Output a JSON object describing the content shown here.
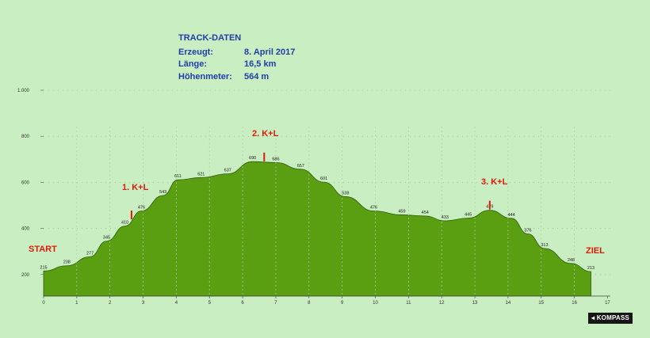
{
  "track_info": {
    "title": "TRACK-DATEN",
    "rows": [
      {
        "label": "Erzeugt:",
        "value": "8. April 2017"
      },
      {
        "label": "Länge:",
        "value": "16,5 km"
      },
      {
        "label": "Höhenmeter:",
        "value": "564 m"
      }
    ]
  },
  "markers": {
    "start": "START",
    "ziel": "ZIEL",
    "stops": [
      {
        "label": "1. K+L",
        "x": 2.65
      },
      {
        "label": "2. K+L",
        "x": 6.65
      },
      {
        "label": "3. K+L",
        "x": 13.45
      }
    ]
  },
  "brand": "KOMPASS",
  "colors": {
    "background": "#c9eec1",
    "fill": "#5a9e12",
    "labels": "#e01a0a",
    "info": "#1f3fa8"
  },
  "chart_data": {
    "type": "area",
    "xlabel": "",
    "ylabel": "",
    "xlim": [
      0,
      17
    ],
    "ylim": [
      0,
      1000
    ],
    "x_ticks": [
      "0",
      "1",
      "2",
      "3",
      "4",
      "5",
      "6",
      "7",
      "8",
      "9",
      "10",
      "11",
      "12",
      "13",
      "14",
      "15",
      "16",
      "17"
    ],
    "y_ticks": [
      {
        "value": 200,
        "label": "200"
      },
      {
        "value": 400,
        "label": "400"
      },
      {
        "value": 600,
        "label": "600"
      },
      {
        "value": 800,
        "label": "800"
      },
      {
        "value": 1000,
        "label": "1.000"
      }
    ],
    "grid": "vertical dashed lines at each km, dotted horizontal lines",
    "points": [
      {
        "x": 0.0,
        "y": 215
      },
      {
        "x": 0.7,
        "y": 238
      },
      {
        "x": 1.4,
        "y": 277
      },
      {
        "x": 1.9,
        "y": 345
      },
      {
        "x": 2.45,
        "y": 410
      },
      {
        "x": 2.95,
        "y": 476
      },
      {
        "x": 3.6,
        "y": 543
      },
      {
        "x": 4.05,
        "y": 611
      },
      {
        "x": 4.75,
        "y": 621
      },
      {
        "x": 5.55,
        "y": 637
      },
      {
        "x": 6.3,
        "y": 690
      },
      {
        "x": 7.0,
        "y": 686
      },
      {
        "x": 7.75,
        "y": 657
      },
      {
        "x": 8.45,
        "y": 601
      },
      {
        "x": 9.1,
        "y": 538
      },
      {
        "x": 9.95,
        "y": 476
      },
      {
        "x": 10.8,
        "y": 459
      },
      {
        "x": 11.5,
        "y": 454
      },
      {
        "x": 12.1,
        "y": 433
      },
      {
        "x": 12.8,
        "y": 445
      },
      {
        "x": 13.45,
        "y": 479
      },
      {
        "x": 14.1,
        "y": 444
      },
      {
        "x": 14.6,
        "y": 376
      },
      {
        "x": 15.1,
        "y": 313
      },
      {
        "x": 15.9,
        "y": 248
      },
      {
        "x": 16.5,
        "y": 213
      }
    ],
    "point_labels": [
      "215",
      "238",
      "277",
      "345",
      "410",
      "476",
      "543",
      "611",
      "621",
      "637",
      "690",
      "686",
      "657",
      "601",
      "538",
      "476",
      "459",
      "454",
      "433",
      "445",
      "479",
      "444",
      "376",
      "313",
      "248",
      "213"
    ]
  }
}
